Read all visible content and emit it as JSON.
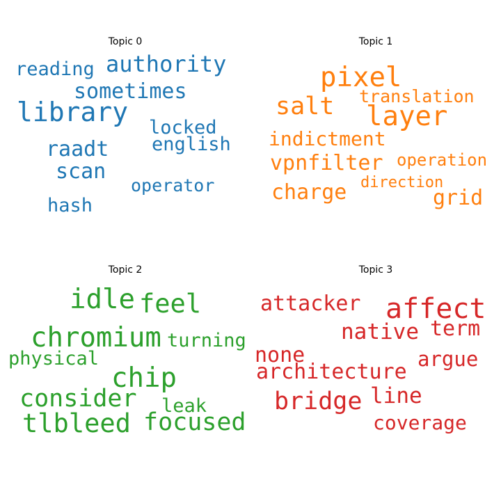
{
  "chart_data": [
    {
      "type": "wordcloud",
      "title": "Topic 0",
      "color": "#1f77b4",
      "words": [
        "library",
        "authority",
        "sometimes",
        "reading",
        "raadt",
        "locked",
        "english",
        "scan",
        "operator",
        "hash"
      ]
    },
    {
      "type": "wordcloud",
      "title": "Topic 1",
      "color": "#ff7f0e",
      "words": [
        "pixel",
        "layer",
        "salt",
        "translation",
        "indictment",
        "vpnfilter",
        "operation",
        "charge",
        "direction",
        "grid"
      ]
    },
    {
      "type": "wordcloud",
      "title": "Topic 2",
      "color": "#2ca02c",
      "words": [
        "idle",
        "feel",
        "chromium",
        "turning",
        "physical",
        "chip",
        "consider",
        "leak",
        "tlbleed",
        "focused"
      ]
    },
    {
      "type": "wordcloud",
      "title": "Topic 3",
      "color": "#d62728",
      "words": [
        "affect",
        "attacker",
        "native",
        "term",
        "none",
        "argue",
        "architecture",
        "bridge",
        "line",
        "coverage"
      ]
    }
  ]
}
